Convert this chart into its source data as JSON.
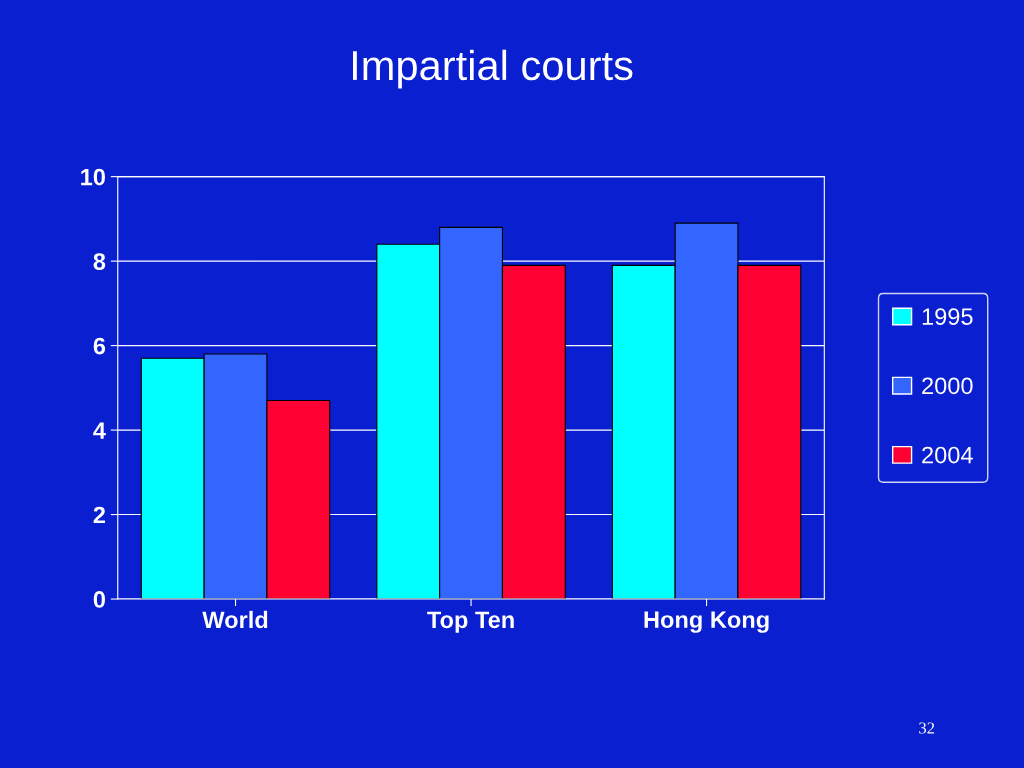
{
  "chart_data": {
    "type": "bar",
    "title": "Impartial courts",
    "categories": [
      "World",
      "Top Ten",
      "Hong Kong"
    ],
    "series": [
      {
        "name": "1995",
        "color": "#00ffff",
        "values": [
          5.7,
          8.4,
          7.9
        ]
      },
      {
        "name": "2000",
        "color": "#3366ff",
        "values": [
          5.8,
          8.8,
          8.9
        ]
      },
      {
        "name": "2004",
        "color": "#ff0033",
        "values": [
          4.7,
          7.9,
          7.9
        ]
      }
    ],
    "ylim": [
      0,
      10
    ],
    "yticks": [
      0,
      2,
      4,
      6,
      8,
      10
    ],
    "grid": "y",
    "legend": "right",
    "annotations": [
      "32"
    ]
  }
}
